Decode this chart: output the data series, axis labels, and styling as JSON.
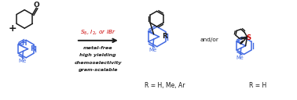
{
  "bg_color": "#ffffff",
  "blue_color": "#4169E1",
  "red_color": "#CC0000",
  "black_color": "#1a1a1a",
  "product1_label": "R = H, Me, Ar",
  "product2_label": "R = H",
  "andor_text": "and/or"
}
